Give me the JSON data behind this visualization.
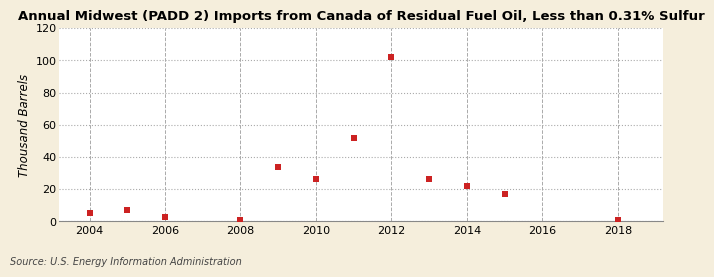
{
  "title": "Annual Midwest (PADD 2) Imports from Canada of Residual Fuel Oil, Less than 0.31% Sulfur",
  "ylabel": "Thousand Barrels",
  "source": "Source: U.S. Energy Information Administration",
  "background_color": "#f5eedc",
  "plot_bg_color": "#ffffff",
  "years": [
    2004,
    2005,
    2006,
    2008,
    2009,
    2010,
    2011,
    2012,
    2013,
    2014,
    2015,
    2018
  ],
  "values": [
    5,
    7,
    3,
    1,
    34,
    26,
    52,
    102,
    26,
    22,
    17,
    1
  ],
  "marker_color": "#cc2222",
  "xlim": [
    2003.2,
    2019.2
  ],
  "ylim": [
    0,
    120
  ],
  "yticks": [
    0,
    20,
    40,
    60,
    80,
    100,
    120
  ],
  "xticks": [
    2004,
    2006,
    2008,
    2010,
    2012,
    2014,
    2016,
    2018
  ],
  "title_fontsize": 9.5,
  "axis_fontsize": 8.5,
  "tick_fontsize": 8,
  "source_fontsize": 7
}
